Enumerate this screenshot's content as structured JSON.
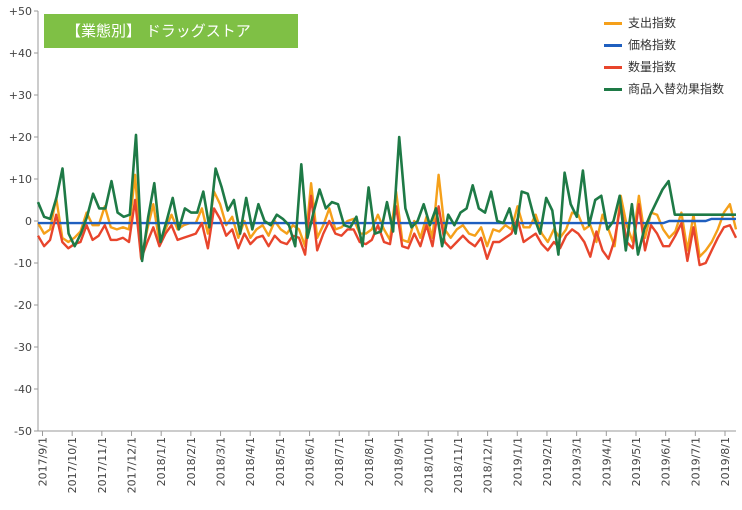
{
  "chart_data": {
    "type": "line",
    "title": "【業態別】 ドラッグストア",
    "ylim": [
      -50,
      50
    ],
    "yticks": [
      "+50",
      "+40",
      "+30",
      "+20",
      "+10",
      "0",
      "-10",
      "-20",
      "-30",
      "-40",
      "-50"
    ],
    "xticks": [
      "2017/9/1",
      "2017/10/1",
      "2017/11/1",
      "2017/12/1",
      "2018/1/1",
      "2018/2/1",
      "2018/3/1",
      "2018/4/1",
      "2018/5/1",
      "2018/6/1",
      "2018/7/1",
      "2018/8/1",
      "2018/9/1",
      "2018/10/1",
      "2018/11/1",
      "2018/12/1",
      "2019/1/1",
      "2019/2/1",
      "2019/3/1",
      "2019/4/1",
      "2019/5/1",
      "2019/6/1",
      "2019/7/1",
      "2019/8/1"
    ],
    "legend_position": "top-right",
    "grid": false,
    "series": [
      {
        "name": "支出指数",
        "color": "#f5a01a",
        "values": [
          -0.5,
          -3,
          -2,
          5.5,
          -4,
          -5,
          -4,
          -2.5,
          2,
          -1,
          -1,
          3.5,
          -1.5,
          -2,
          -1.5,
          -2,
          11,
          -9,
          -2,
          4,
          -5,
          -2,
          1.5,
          -2,
          -1,
          -0.5,
          -0.5,
          3,
          -3,
          7,
          4,
          -1,
          1,
          -4,
          0,
          -4,
          -2,
          -1,
          -3.5,
          0,
          -2,
          -3,
          -1,
          -2,
          -6,
          9,
          -4,
          -1,
          3,
          -2,
          -1.5,
          0,
          0.5,
          -3,
          -3,
          -2,
          1.5,
          -2,
          -4.5,
          7,
          -4.5,
          -5,
          0,
          -4,
          1,
          -4,
          11,
          -2,
          -4,
          -2,
          -1,
          -3,
          -3.5,
          -1.5,
          -6,
          -2,
          -2.5,
          -1,
          -2,
          3.5,
          -1.5,
          -1.5,
          1.5,
          -3,
          -5,
          -2,
          -4,
          -2,
          2,
          1.5,
          -2,
          -1,
          -5,
          1.5,
          -2,
          -6,
          6,
          -1,
          -5,
          6,
          -4,
          2,
          1.5,
          -2,
          -4,
          -2.5,
          2,
          -7,
          1.5,
          -8.5,
          -7,
          -5,
          -2,
          2,
          4,
          -2
        ]
      },
      {
        "name": "価格指数",
        "color": "#1f5fbf",
        "values": [
          -0.5,
          -0.5,
          -0.5,
          -0.5,
          -0.5,
          -0.5,
          -0.5,
          -0.5,
          -0.5,
          -0.5,
          -0.5,
          -0.5,
          -0.5,
          -0.5,
          -0.5,
          -0.5,
          -0.5,
          -0.5,
          -0.5,
          -0.5,
          -0.5,
          -0.5,
          -0.5,
          -0.5,
          -0.5,
          -0.5,
          -0.5,
          -0.5,
          -0.5,
          -0.5,
          -0.5,
          -0.5,
          -0.5,
          -0.5,
          -0.5,
          -0.5,
          -0.5,
          -0.5,
          -0.5,
          -0.5,
          -0.5,
          -0.5,
          -0.5,
          -0.5,
          -0.5,
          -0.5,
          -0.5,
          -0.5,
          -0.5,
          -0.5,
          -0.5,
          -0.5,
          -0.5,
          -0.5,
          -0.5,
          -0.5,
          -0.5,
          -0.5,
          -0.5,
          -0.5,
          -0.5,
          -0.5,
          -0.5,
          -0.5,
          -0.5,
          -0.5,
          -0.5,
          -0.5,
          -0.5,
          -0.5,
          -0.5,
          -0.5,
          -0.5,
          -0.5,
          -0.5,
          -0.5,
          -0.5,
          -0.5,
          -0.5,
          -0.5,
          -0.5,
          -0.5,
          -0.5,
          -0.5,
          -0.5,
          -0.5,
          -0.5,
          -0.5,
          -0.5,
          -0.5,
          -0.5,
          -0.5,
          -0.5,
          -0.5,
          -0.5,
          -0.5,
          -0.5,
          -0.5,
          -0.5,
          -0.5,
          -0.5,
          -0.5,
          -0.5,
          -0.5,
          0,
          0,
          0,
          0,
          0,
          0,
          0,
          0.5,
          0.5,
          0.5,
          0.5,
          0.5
        ]
      },
      {
        "name": "数量指数",
        "color": "#e8452c",
        "values": [
          -3.5,
          -6,
          -4.5,
          1.5,
          -5,
          -6.5,
          -5.5,
          -5,
          -1,
          -4.5,
          -3.5,
          -1,
          -4.5,
          -4.5,
          -4,
          -5,
          5,
          -9,
          -5,
          -1.5,
          -6,
          -3,
          -1,
          -4.5,
          -4,
          -3.5,
          -3,
          -0.5,
          -6.5,
          3,
          0.5,
          -3.5,
          -2,
          -6.5,
          -3,
          -5.5,
          -4,
          -3.5,
          -6,
          -3.5,
          -5,
          -5.5,
          -3.5,
          -4,
          -8,
          6,
          -7,
          -3,
          0,
          -3,
          -3.5,
          -2,
          -2,
          -5,
          -5.5,
          -4.5,
          -1,
          -5,
          -5.5,
          3.5,
          -6,
          -6.5,
          -3,
          -6,
          -1,
          -6,
          3.5,
          -5,
          -6.5,
          -5,
          -3.5,
          -5,
          -6,
          -4,
          -9,
          -5,
          -5,
          -4,
          -3,
          0.5,
          -5,
          -4,
          -3,
          -5.5,
          -7,
          -5,
          -6.5,
          -3.5,
          -2,
          -3,
          -5,
          -8.5,
          -2.5,
          -7,
          -9,
          -4.5,
          4,
          -5,
          -6.5,
          4,
          -7,
          -1,
          -3,
          -6,
          -6,
          -3.5,
          -0.5,
          -9.5,
          -1.5,
          -10.5,
          -10,
          -7,
          -4,
          -1.5,
          -1,
          -4
        ]
      },
      {
        "name": "商品入替効果指数",
        "color": "#1e7a46",
        "values": [
          4.5,
          1,
          0.5,
          5.5,
          12.5,
          -3,
          -6,
          -3,
          1,
          6.5,
          3,
          3,
          9.5,
          2,
          1,
          1.5,
          20.5,
          -9.5,
          1,
          9,
          -5,
          0,
          5.5,
          -2,
          3,
          2,
          2,
          7,
          -1.5,
          12.5,
          8,
          2.5,
          5,
          -3,
          5.5,
          -2,
          4,
          0,
          -1,
          1.5,
          0.5,
          -1,
          -6,
          13.5,
          -4,
          2,
          7.5,
          3,
          4.5,
          4,
          -1,
          -1.5,
          1,
          -6,
          8,
          -3,
          -2.5,
          4.5,
          -2.5,
          20,
          3,
          -1.5,
          0,
          4,
          -1,
          3,
          -6,
          1.5,
          -1,
          2,
          3,
          8.5,
          3,
          2,
          7,
          0,
          -0.5,
          3,
          -3,
          7,
          6.5,
          1,
          -3,
          5.5,
          2.5,
          -8,
          11.5,
          4,
          1,
          12,
          -1,
          5,
          6,
          -2,
          0,
          6,
          -7,
          4,
          -8,
          -2,
          1.5,
          4.5,
          7.5,
          9.5,
          1.5,
          1.5,
          1.5,
          1.5,
          1.5,
          1.5,
          1.5,
          1.5,
          1.5,
          1.5,
          1.5
        ]
      }
    ]
  }
}
